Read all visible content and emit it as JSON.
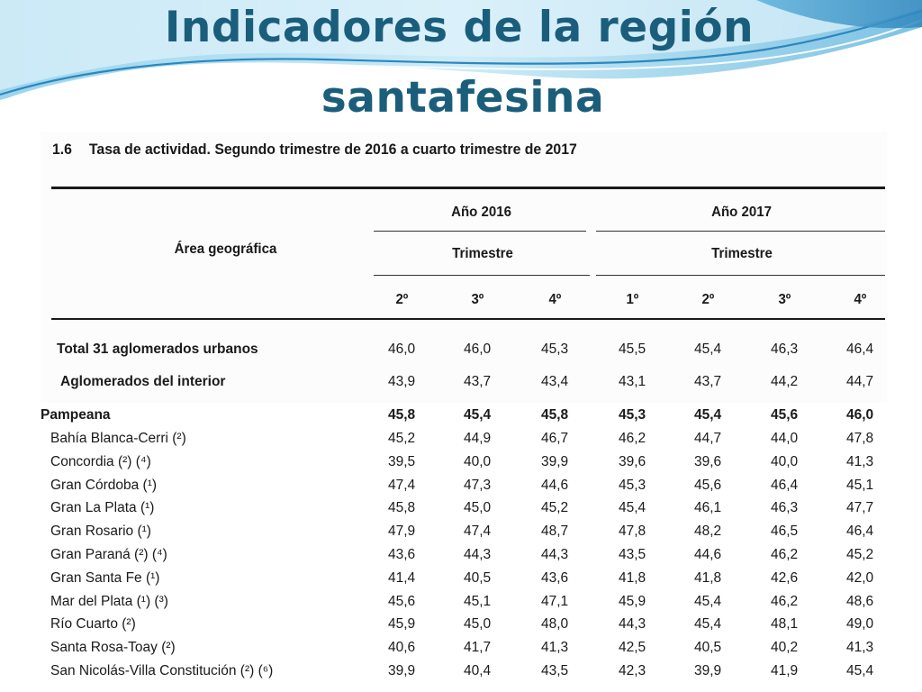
{
  "slide": {
    "title_line1": "Indicadores de la región",
    "title_line2": "santafesina"
  },
  "table": {
    "number": "1.6",
    "caption": "Tasa de actividad. Segundo trimestre de 2016 a cuarto trimestre de 2017",
    "area_header": "Área geográfica",
    "year_2016": "Año 2016",
    "year_2017": "Año 2017",
    "quarter_header": "Trimestre",
    "quarters": [
      "2º",
      "3º",
      "4º",
      "1º",
      "2º",
      "3º",
      "4º"
    ],
    "summary_rows": [
      {
        "label": "Total 31 aglomerados urbanos",
        "values": [
          "46,0",
          "46,0",
          "45,3",
          "45,5",
          "45,4",
          "46,3",
          "46,4"
        ]
      },
      {
        "label": "Aglomerados del interior",
        "values": [
          "43,9",
          "43,7",
          "43,4",
          "43,1",
          "43,7",
          "44,2",
          "44,7"
        ]
      }
    ],
    "region_row": {
      "label": "Pampeana",
      "values": [
        "45,8",
        "45,4",
        "45,8",
        "45,3",
        "45,4",
        "45,6",
        "46,0"
      ]
    },
    "city_rows": [
      {
        "label": "Bahía Blanca-Cerri (²)",
        "values": [
          "45,2",
          "44,9",
          "46,7",
          "46,2",
          "44,7",
          "44,0",
          "47,8"
        ]
      },
      {
        "label": "Concordia (²) (⁴)",
        "values": [
          "39,5",
          "40,0",
          "39,9",
          "39,6",
          "39,6",
          "40,0",
          "41,3"
        ]
      },
      {
        "label": "Gran Córdoba (¹)",
        "values": [
          "47,4",
          "47,3",
          "44,6",
          "45,3",
          "45,6",
          "46,4",
          "45,1"
        ]
      },
      {
        "label": "Gran La Plata (¹)",
        "values": [
          "45,8",
          "45,0",
          "45,2",
          "45,4",
          "46,1",
          "46,3",
          "47,7"
        ]
      },
      {
        "label": "Gran Rosario (¹)",
        "values": [
          "47,9",
          "47,4",
          "48,7",
          "47,8",
          "48,2",
          "46,5",
          "46,4"
        ]
      },
      {
        "label": "Gran Paraná (²) (⁴)",
        "values": [
          "43,6",
          "44,3",
          "44,3",
          "43,5",
          "44,6",
          "46,2",
          "45,2"
        ]
      },
      {
        "label": "Gran Santa Fe (¹)",
        "values": [
          "41,4",
          "40,5",
          "43,6",
          "41,8",
          "41,8",
          "42,6",
          "42,0"
        ]
      },
      {
        "label": "Mar del Plata (¹) (³)",
        "values": [
          "45,6",
          "45,1",
          "47,1",
          "45,9",
          "45,4",
          "46,2",
          "48,6"
        ]
      },
      {
        "label": "Río Cuarto (²)",
        "values": [
          "45,9",
          "45,0",
          "48,0",
          "44,3",
          "45,4",
          "48,1",
          "49,0"
        ]
      },
      {
        "label": "Santa Rosa-Toay (²)",
        "values": [
          "40,6",
          "41,7",
          "41,3",
          "42,5",
          "40,5",
          "40,2",
          "41,3"
        ]
      },
      {
        "label": "San Nicolás-Villa Constitución (²) (⁶)",
        "values": [
          "39,9",
          "40,4",
          "43,5",
          "42,3",
          "39,9",
          "41,9",
          "45,4"
        ]
      }
    ]
  },
  "colors": {
    "title": "#1b5e7c",
    "wave_light": "#bfe3f3",
    "wave_mid": "#7ec3e3",
    "wave_dark": "#3a93c4"
  }
}
